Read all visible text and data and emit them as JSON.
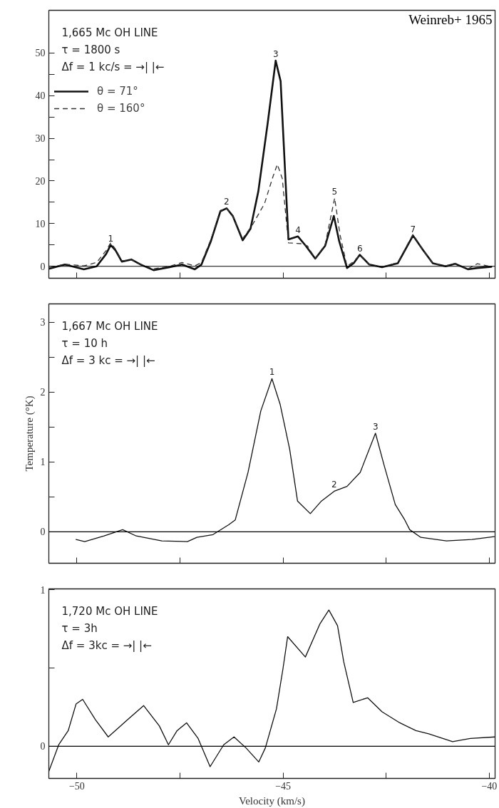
{
  "chart_data": [
    {
      "type": "line",
      "title": "Weinreb+ 1965",
      "annotations": [
        "1,665 Mc OH LINE",
        "τ = 1800 s",
        "Δf = 1 kc/s = →| |←",
        {
          "text": "1",
          "x": -49.18,
          "y": 5.0
        },
        {
          "text": "2",
          "x": -46.37,
          "y": 13.6
        },
        {
          "text": "3",
          "x": -45.18,
          "y": 48.2
        },
        {
          "text": "4",
          "x": -44.64,
          "y": 7.0
        },
        {
          "text": "5",
          "x": -43.75,
          "y": 16.0
        },
        {
          "text": "6",
          "x": -43.14,
          "y": 2.7
        },
        {
          "text": "7",
          "x": -41.85,
          "y": 7.2
        }
      ],
      "xlim": [
        -50.68,
        -39.86
      ],
      "ylim": [
        -2.8,
        60
      ],
      "xticks": [
        {
          "value": -50,
          "label": null
        },
        {
          "value": -47.5,
          "label": null
        },
        {
          "value": -45,
          "label": null
        },
        {
          "value": -42.5,
          "label": null
        },
        {
          "value": -40,
          "label": null
        }
      ],
      "yticks": [
        0,
        {
          "value": 5,
          "label": null
        },
        10,
        {
          "value": 15,
          "label": null
        },
        20,
        {
          "value": 25,
          "label": null
        },
        30,
        {
          "value": 35,
          "label": null
        },
        40,
        {
          "value": 45,
          "label": null
        },
        50
      ],
      "tick_labels": "y",
      "legend": "top left",
      "line_style": "solid",
      "ref_lines": [
        {
          "axis": "y",
          "value": 0,
          "color": "#000000"
        }
      ],
      "series": [
        {
          "name": "θ = 71°",
          "color": "#111111",
          "x": [
            -50.68,
            -50.29,
            -49.83,
            -49.52,
            -49.29,
            -49.18,
            -49.06,
            -48.91,
            -48.68,
            -48.45,
            -48.14,
            -47.75,
            -47.45,
            -47.14,
            -46.98,
            -46.75,
            -46.52,
            -46.37,
            -46.22,
            -45.98,
            -45.79,
            -45.6,
            -45.37,
            -45.18,
            -45.06,
            -44.87,
            -44.64,
            -44.45,
            -44.22,
            -43.98,
            -43.77,
            -43.64,
            -43.45,
            -43.29,
            -43.14,
            -42.91,
            -42.6,
            -42.22,
            -41.85,
            -41.6,
            -41.37,
            -41.06,
            -40.83,
            -40.52,
            -40.29,
            -39.95
          ],
          "values": [
            -0.6,
            0.4,
            -0.7,
            0,
            2.9,
            5.0,
            3.7,
            1.1,
            1.6,
            0.4,
            -0.9,
            -0.2,
            0.4,
            -0.7,
            0.4,
            5.9,
            12.9,
            13.6,
            11.8,
            6.1,
            8.8,
            17.6,
            33.8,
            48.2,
            43.4,
            6.3,
            7.0,
            4.8,
            1.8,
            4.8,
            11.8,
            5.9,
            -0.4,
            0.7,
            2.7,
            0.4,
            -0.2,
            0.7,
            7.2,
            3.7,
            0.7,
            0,
            0.6,
            -0.7,
            -0.4,
            -0.1
          ]
        },
        {
          "name": "θ = 160°",
          "color": "#333333",
          "line_style": "dashed",
          "x": [
            -50.68,
            -50.29,
            -49.83,
            -49.52,
            -49.29,
            -49.18,
            -49.06,
            -48.91,
            -48.68,
            -48.45,
            -48.14,
            -47.75,
            -47.45,
            -47.14,
            -46.98,
            -46.75,
            -46.52,
            -46.37,
            -46.22,
            -45.98,
            -45.75,
            -45.45,
            -45.26,
            -45.14,
            -45.02,
            -44.87,
            -44.56,
            -44.41,
            -44.22,
            -43.98,
            -43.75,
            -43.62,
            -43.45,
            -43.29,
            -43.14,
            -42.91,
            -42.6,
            -42.22,
            -41.85,
            -41.6,
            -41.37,
            -41.06,
            -40.83,
            -40.52,
            -40.29,
            -39.95
          ],
          "values": [
            -0.4,
            0.5,
            0.1,
            0.9,
            3.7,
            5.5,
            4.0,
            1.3,
            1.5,
            0.5,
            -0.6,
            0,
            0.9,
            0.1,
            0.9,
            6.3,
            13.1,
            13.6,
            11.8,
            6.5,
            9.6,
            14.7,
            20.6,
            23.9,
            20.6,
            5.5,
            5.3,
            4.8,
            1.8,
            5.1,
            16.0,
            7.4,
            0,
            1.1,
            2.7,
            0.4,
            -0.2,
            0.9,
            7.5,
            3.7,
            0.7,
            0.1,
            0.7,
            -0.6,
            0.6,
            -0.1
          ]
        }
      ]
    },
    {
      "type": "line",
      "ylabel": "Temperature (°K)",
      "annotations": [
        "1,667 Mc OH LINE",
        "τ = 10 h",
        "Δf =  3 kc = →|   |←",
        {
          "text": "1",
          "x": -45.27,
          "y": 2.19
        },
        {
          "text": "2",
          "x": -43.76,
          "y": 0.58
        },
        {
          "text": "3",
          "x": -42.76,
          "y": 1.41
        }
      ],
      "xlim": [
        -50.68,
        -39.86
      ],
      "ylim": [
        -0.45,
        3.26
      ],
      "xticks": [
        {
          "value": -50,
          "label": null
        },
        {
          "value": -47.5,
          "label": null
        },
        {
          "value": -45,
          "label": null
        },
        {
          "value": -42.5,
          "label": null
        },
        {
          "value": -40,
          "label": null
        }
      ],
      "yticks": [
        0,
        {
          "value": 0.5,
          "label": null
        },
        1,
        {
          "value": 1.5,
          "label": null
        },
        2,
        {
          "value": 2.5,
          "label": null
        },
        3
      ],
      "tick_labels": "y",
      "line_style": "solid",
      "ref_lines": [
        {
          "axis": "y",
          "value": 0,
          "color": "#000000"
        }
      ],
      "series": [
        {
          "color": "#111111",
          "x": [
            -50.02,
            -49.81,
            -49.34,
            -48.89,
            -48.56,
            -47.94,
            -47.32,
            -47.09,
            -46.7,
            -46.32,
            -46.16,
            -45.85,
            -45.54,
            -45.27,
            -45.07,
            -44.84,
            -44.65,
            -44.34,
            -44.07,
            -43.76,
            -43.45,
            -43.13,
            -42.76,
            -42.55,
            -42.28,
            -42.05,
            -41.93,
            -41.66,
            -41.04,
            -40.42,
            -39.88
          ],
          "values": [
            -0.11,
            -0.14,
            -0.06,
            0.03,
            -0.06,
            -0.13,
            -0.14,
            -0.08,
            -0.04,
            0.1,
            0.17,
            0.85,
            1.73,
            2.19,
            1.82,
            1.18,
            0.44,
            0.26,
            0.44,
            0.58,
            0.65,
            0.85,
            1.41,
            0.95,
            0.39,
            0.17,
            0.03,
            -0.08,
            -0.13,
            -0.11,
            -0.07
          ]
        }
      ]
    },
    {
      "type": "line",
      "xlabel": "Velocity (km/s)",
      "annotations": [
        "1,720 Mc OH LINE",
        "τ = 3h",
        "Δf = 3kc =  →|    |←"
      ],
      "xlim": [
        -50.68,
        -39.86
      ],
      "ylim": [
        -0.205,
        1.005
      ],
      "xticks": [
        {
          "value": -50,
          "label": "−50"
        },
        {
          "value": -47.5,
          "label": null
        },
        {
          "value": -45,
          "label": "−45"
        },
        {
          "value": -42.5,
          "label": null
        },
        {
          "value": -40,
          "label": "−40"
        }
      ],
      "yticks": [
        0,
        {
          "value": 0.5,
          "label": null
        },
        1
      ],
      "line_style": "solid",
      "ref_lines": [
        {
          "axis": "y",
          "value": 0,
          "color": "#000000"
        }
      ],
      "series": [
        {
          "color": "#111111",
          "x": [
            -50.68,
            -50.44,
            -50.21,
            -50.02,
            -49.86,
            -49.55,
            -49.24,
            -48.77,
            -48.38,
            -48.0,
            -47.78,
            -47.57,
            -47.34,
            -47.06,
            -46.77,
            -46.44,
            -46.19,
            -45.9,
            -45.59,
            -45.43,
            -45.16,
            -45.0,
            -44.89,
            -44.46,
            -44.11,
            -43.89,
            -43.68,
            -43.53,
            -43.3,
            -42.95,
            -42.6,
            -42.17,
            -41.78,
            -41.47,
            -40.89,
            -40.46,
            -39.86
          ],
          "values": [
            -0.16,
            0.01,
            0.1,
            0.27,
            0.3,
            0.17,
            0.06,
            0.17,
            0.26,
            0.13,
            0.01,
            0.1,
            0.15,
            0.05,
            -0.13,
            0.01,
            0.06,
            -0.01,
            -0.1,
            -0.01,
            0.24,
            0.5,
            0.7,
            0.57,
            0.78,
            0.87,
            0.77,
            0.54,
            0.28,
            0.31,
            0.22,
            0.15,
            0.1,
            0.08,
            0.03,
            0.05,
            0.06
          ]
        }
      ]
    }
  ]
}
